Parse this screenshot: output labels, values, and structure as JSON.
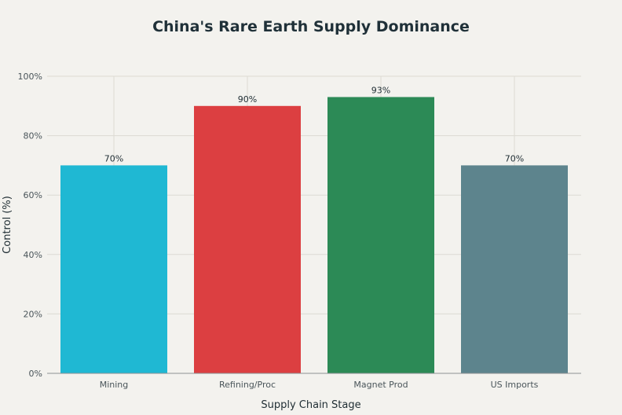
{
  "chart_data": {
    "type": "bar",
    "title": "China's Rare Earth Supply Dominance",
    "xlabel": "Supply Chain Stage",
    "ylabel": "Control (%)",
    "categories": [
      "Mining",
      "Refining/Proc",
      "Magnet Prod",
      "US Imports"
    ],
    "values": [
      70,
      90,
      93,
      70
    ],
    "value_labels": [
      "70%",
      "90%",
      "93%",
      "70%"
    ],
    "colors": [
      "#1fb8d3",
      "#dc3f41",
      "#2c8a56",
      "#5d848d"
    ],
    "ylim": [
      0,
      100
    ],
    "yticks": [
      0,
      20,
      40,
      60,
      80,
      100
    ],
    "ytick_labels": [
      "0%",
      "20%",
      "40%",
      "60%",
      "80%",
      "100%"
    ],
    "grid": true,
    "legend": "none"
  }
}
